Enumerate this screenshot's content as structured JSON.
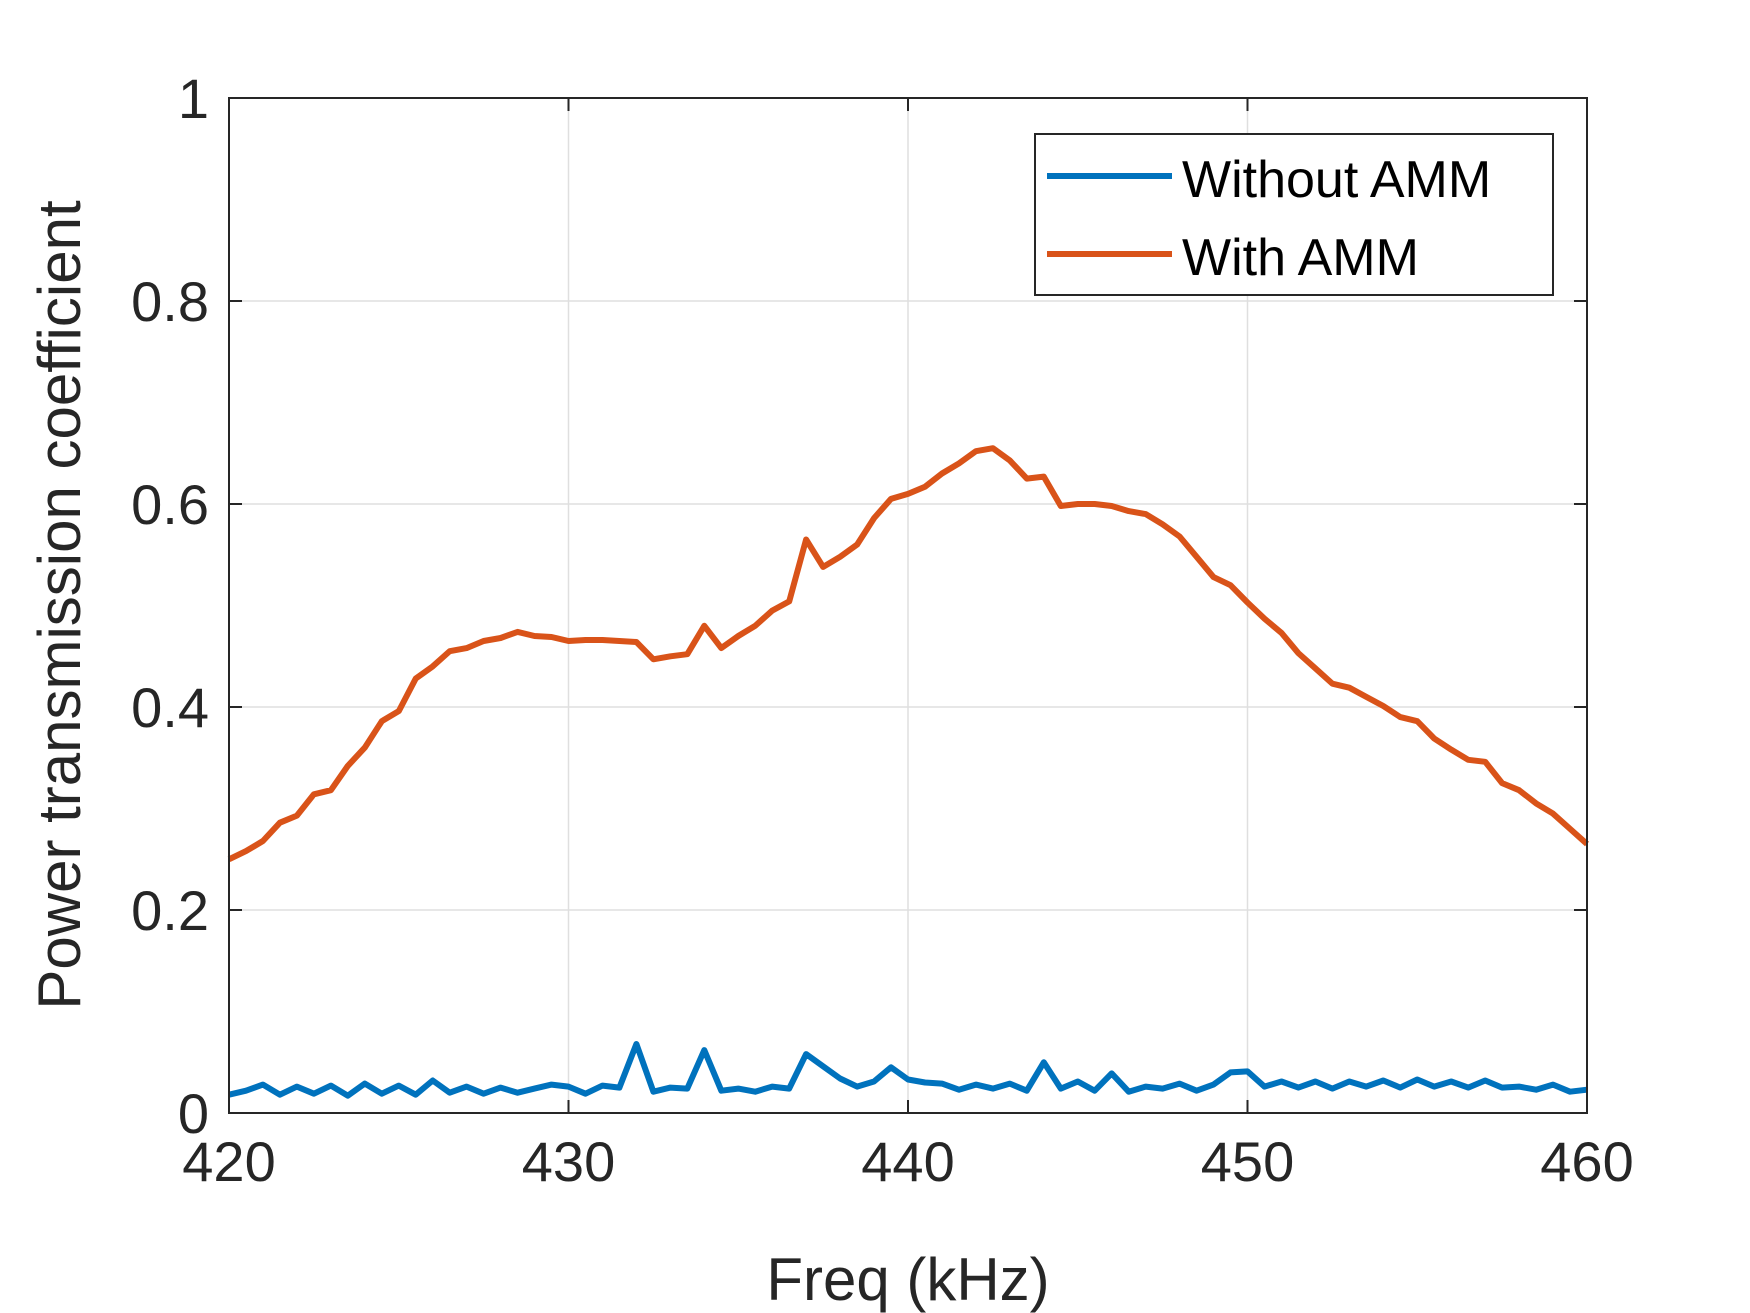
{
  "chart_data": {
    "type": "line",
    "title": "",
    "xlabel": "Freq (kHz)",
    "ylabel": "Power transmission coefficient",
    "xlim": [
      420,
      460
    ],
    "ylim": [
      0,
      1
    ],
    "xticks": [
      420,
      430,
      440,
      450,
      460
    ],
    "xtick_labels": [
      "420",
      "430",
      "440",
      "450",
      "460"
    ],
    "yticks": [
      0,
      0.2,
      0.4,
      0.6,
      0.8,
      1
    ],
    "ytick_labels": [
      "0",
      "0.2",
      "0.4",
      "0.6",
      "0.8",
      "1"
    ],
    "grid": true,
    "legend_position": "top-right",
    "x": [
      420.0,
      420.5,
      421.0,
      421.5,
      422.0,
      422.5,
      423.0,
      423.5,
      424.0,
      424.5,
      425.0,
      425.5,
      426.0,
      426.5,
      427.0,
      427.5,
      428.0,
      428.5,
      429.0,
      429.5,
      430.0,
      430.5,
      431.0,
      431.5,
      432.0,
      432.5,
      433.0,
      433.5,
      434.0,
      434.5,
      435.0,
      435.5,
      436.0,
      436.5,
      437.0,
      437.5,
      438.0,
      438.5,
      439.0,
      439.5,
      440.0,
      440.5,
      441.0,
      441.5,
      442.0,
      442.5,
      443.0,
      443.5,
      444.0,
      444.5,
      445.0,
      445.5,
      446.0,
      446.5,
      447.0,
      447.5,
      448.0,
      448.5,
      449.0,
      449.5,
      450.0,
      450.5,
      451.0,
      451.5,
      452.0,
      452.5,
      453.0,
      453.5,
      454.0,
      454.5,
      455.0,
      455.5,
      456.0,
      456.5,
      457.0,
      457.5,
      458.0,
      458.5,
      459.0,
      459.5,
      460.0
    ],
    "series": [
      {
        "name": "Without AMM",
        "color": "#0072BD",
        "values": [
          0.018,
          0.022,
          0.028,
          0.018,
          0.026,
          0.019,
          0.027,
          0.017,
          0.029,
          0.019,
          0.027,
          0.018,
          0.032,
          0.02,
          0.026,
          0.019,
          0.025,
          0.02,
          0.024,
          0.028,
          0.026,
          0.019,
          0.027,
          0.025,
          0.068,
          0.021,
          0.025,
          0.024,
          0.062,
          0.022,
          0.024,
          0.021,
          0.026,
          0.024,
          0.058,
          0.046,
          0.034,
          0.026,
          0.031,
          0.045,
          0.033,
          0.03,
          0.029,
          0.023,
          0.028,
          0.024,
          0.029,
          0.022,
          0.05,
          0.024,
          0.031,
          0.022,
          0.039,
          0.021,
          0.026,
          0.024,
          0.029,
          0.022,
          0.028,
          0.04,
          0.041,
          0.026,
          0.031,
          0.025,
          0.031,
          0.024,
          0.031,
          0.026,
          0.032,
          0.025,
          0.033,
          0.026,
          0.031,
          0.025,
          0.032,
          0.025,
          0.026,
          0.023,
          0.028,
          0.021,
          0.023
        ]
      },
      {
        "name": "With AMM",
        "color": "#D95319",
        "values": [
          0.25,
          0.258,
          0.268,
          0.286,
          0.293,
          0.314,
          0.318,
          0.342,
          0.36,
          0.386,
          0.396,
          0.428,
          0.44,
          0.455,
          0.458,
          0.465,
          0.468,
          0.474,
          0.47,
          0.469,
          0.465,
          0.466,
          0.466,
          0.465,
          0.464,
          0.447,
          0.45,
          0.452,
          0.48,
          0.458,
          0.47,
          0.48,
          0.495,
          0.504,
          0.565,
          0.538,
          0.548,
          0.56,
          0.586,
          0.605,
          0.61,
          0.617,
          0.63,
          0.64,
          0.652,
          0.655,
          0.643,
          0.625,
          0.627,
          0.598,
          0.6,
          0.6,
          0.598,
          0.593,
          0.59,
          0.58,
          0.568,
          0.548,
          0.528,
          0.52,
          0.503,
          0.487,
          0.473,
          0.453,
          0.438,
          0.423,
          0.419,
          0.41,
          0.401,
          0.39,
          0.386,
          0.369,
          0.358,
          0.348,
          0.346,
          0.325,
          0.318,
          0.305,
          0.295,
          0.28,
          0.265
        ]
      }
    ]
  }
}
